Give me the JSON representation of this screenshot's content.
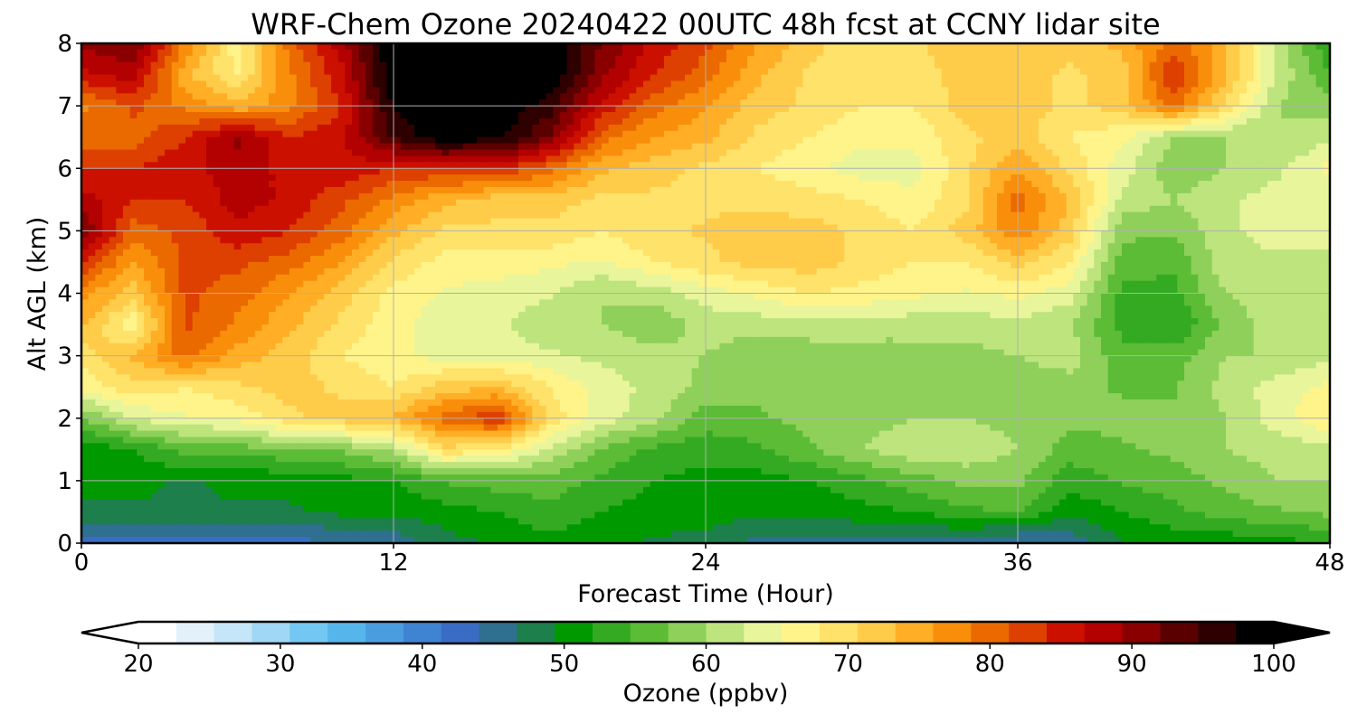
{
  "chart_data": {
    "type": "heatmap",
    "title": "WRF-Chem Ozone  20240422 00UTC 48h fcst at CCNY lidar site",
    "xlabel": "Forecast Time (Hour)",
    "ylabel": "Alt AGL (km)",
    "xlim": [
      0,
      48
    ],
    "ylim": [
      0,
      8
    ],
    "xticks": [
      0,
      12,
      24,
      36,
      48
    ],
    "yticks": [
      0,
      1,
      2,
      3,
      4,
      5,
      6,
      7,
      8
    ],
    "grid": true,
    "colorbar": {
      "label": "Ozone  (ppbv)",
      "ticks": [
        20,
        30,
        40,
        50,
        60,
        70,
        80,
        90,
        100
      ],
      "range": [
        20,
        100
      ],
      "extend": "both",
      "orientation": "horizontal",
      "colors": [
        "#ffffff",
        "#e3f1fb",
        "#c5e6f8",
        "#9fd7f5",
        "#73c7f3",
        "#56b6ec",
        "#4a9ee0",
        "#3f83d3",
        "#3a6cc4",
        "#2f6f8f",
        "#1d7f4c",
        "#009a00",
        "#34aa22",
        "#5cbc36",
        "#8ed05a",
        "#bde47d",
        "#e8f59b",
        "#fff48a",
        "#ffe26a",
        "#ffcc4a",
        "#ffae26",
        "#f98e0a",
        "#ea6a00",
        "#dd4000",
        "#cc1000",
        "#b30000",
        "#8a0000",
        "#5a0000",
        "#2e0000",
        "#000000"
      ]
    },
    "x": [
      0,
      2,
      4,
      6,
      8,
      10,
      12,
      14,
      16,
      18,
      20,
      22,
      24,
      26,
      28,
      30,
      32,
      34,
      36,
      38,
      40,
      42,
      44,
      46,
      48
    ],
    "y": [
      0,
      0.5,
      1,
      1.5,
      2,
      2.5,
      3,
      3.5,
      4,
      4.5,
      5,
      5.5,
      6,
      6.5,
      7,
      7.5,
      8
    ],
    "z": [
      [
        42,
        42,
        42,
        42,
        43,
        44,
        45,
        48,
        50,
        51,
        50,
        49,
        48,
        46,
        46,
        46,
        46,
        45,
        43,
        45,
        49,
        50,
        50,
        51,
        52
      ],
      [
        49,
        49,
        49,
        49,
        49,
        50,
        50,
        51,
        52,
        54,
        52,
        51,
        51,
        50,
        50,
        51,
        52,
        54,
        55,
        50,
        52,
        54,
        56,
        57,
        58
      ],
      [
        50,
        50,
        49,
        50,
        50,
        51,
        52,
        55,
        56,
        56,
        54,
        52,
        51,
        51,
        52,
        54,
        56,
        58,
        58,
        53,
        55,
        56,
        58,
        60,
        60
      ],
      [
        50,
        52,
        56,
        56,
        57,
        58,
        61,
        70,
        68,
        62,
        57,
        54,
        53,
        54,
        57,
        60,
        62,
        62,
        60,
        56,
        57,
        58,
        60,
        61,
        62
      ],
      [
        57,
        63,
        65,
        66,
        70,
        72,
        74,
        80,
        84,
        70,
        64,
        61,
        56,
        57,
        58,
        59,
        60,
        60,
        59,
        58,
        58,
        58,
        60,
        64,
        68
      ],
      [
        66,
        70,
        68,
        70,
        72,
        70,
        68,
        72,
        73,
        68,
        64,
        62,
        59,
        58,
        58,
        58,
        58,
        58,
        58,
        58,
        57,
        57,
        61,
        64,
        66
      ],
      [
        69,
        74,
        80,
        75,
        72,
        68,
        66,
        64,
        64,
        63,
        62,
        61,
        60,
        58,
        58,
        58,
        59,
        59,
        60,
        62,
        55,
        56,
        60,
        60,
        62
      ],
      [
        74,
        66,
        82,
        78,
        74,
        70,
        66,
        64,
        63,
        61,
        60,
        58,
        61,
        61,
        62,
        62,
        61,
        61,
        62,
        60,
        54,
        52,
        58,
        62,
        62
      ],
      [
        77,
        72,
        82,
        80,
        76,
        72,
        67,
        65,
        64,
        63,
        60,
        61,
        64,
        66,
        68,
        67,
        66,
        65,
        66,
        64,
        54,
        54,
        60,
        61,
        61
      ],
      [
        84,
        76,
        82,
        82,
        80,
        76,
        70,
        67,
        67,
        66,
        65,
        68,
        70,
        72,
        72,
        70,
        68,
        68,
        72,
        68,
        56,
        55,
        62,
        62,
        62
      ],
      [
        92,
        80,
        82,
        86,
        84,
        80,
        74,
        70,
        70,
        70,
        68,
        70,
        71,
        72,
        72,
        70,
        68,
        72,
        78,
        72,
        58,
        58,
        62,
        64,
        64
      ],
      [
        88,
        84,
        84,
        88,
        86,
        82,
        78,
        74,
        72,
        72,
        70,
        70,
        70,
        70,
        69,
        68,
        66,
        70,
        80,
        73,
        62,
        60,
        62,
        64,
        64
      ],
      [
        84,
        84,
        86,
        88,
        86,
        86,
        84,
        84,
        84,
        80,
        74,
        72,
        70,
        68,
        66,
        64,
        64,
        70,
        76,
        70,
        64,
        58,
        60,
        62,
        66
      ],
      [
        80,
        80,
        84,
        90,
        84,
        86,
        95,
        100,
        98,
        92,
        80,
        76,
        74,
        70,
        68,
        66,
        66,
        70,
        72,
        68,
        66,
        60,
        60,
        60,
        62
      ],
      [
        78,
        82,
        78,
        74,
        78,
        84,
        98,
        100,
        100,
        96,
        86,
        80,
        76,
        72,
        70,
        68,
        68,
        72,
        72,
        70,
        72,
        80,
        70,
        60,
        58
      ],
      [
        86,
        88,
        74,
        68,
        78,
        86,
        100,
        100,
        100,
        100,
        90,
        84,
        80,
        74,
        70,
        68,
        69,
        72,
        72,
        70,
        72,
        84,
        74,
        62,
        55
      ],
      [
        90,
        92,
        78,
        66,
        80,
        88,
        100,
        100,
        100,
        100,
        92,
        86,
        82,
        76,
        72,
        68,
        70,
        73,
        73,
        72,
        74,
        80,
        74,
        62,
        52
      ]
    ]
  }
}
